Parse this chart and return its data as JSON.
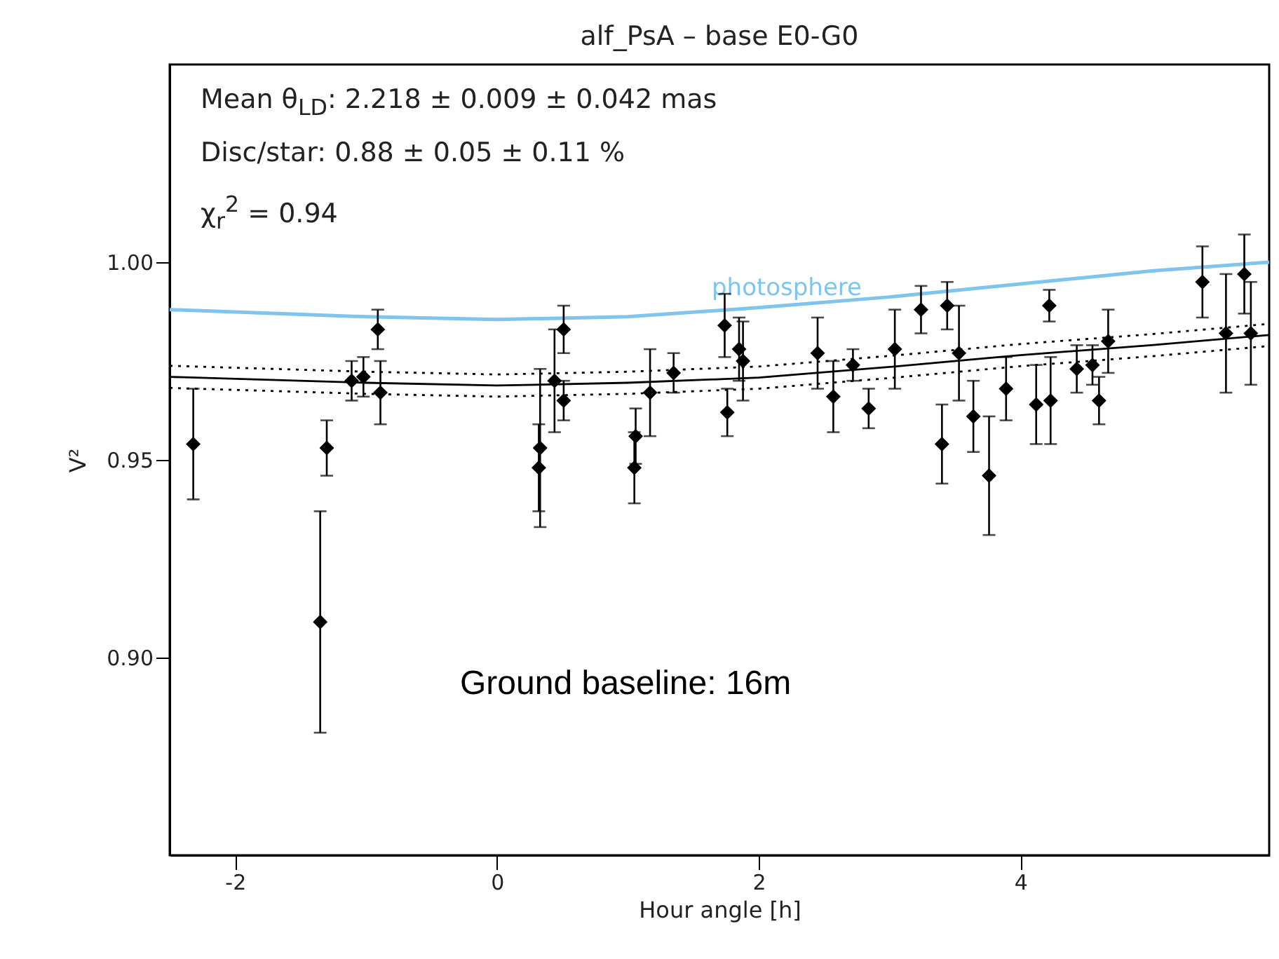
{
  "chart_data": {
    "type": "scatter",
    "title": "alf_PsA – base E0-G0",
    "xlabel": "Hour angle [h]",
    "ylabel": "V²",
    "xlim": [
      -2.5,
      5.9
    ],
    "xticks": [
      -2,
      0,
      2,
      4
    ],
    "ylim": [
      0.85,
      1.05
    ],
    "yticks": [
      {
        "value": 0.9,
        "label": "0.90"
      },
      0.95,
      {
        "value": 1.0,
        "label": "1.00"
      }
    ],
    "annotations": [
      "Mean θ$_{LD}$: 2.218 ± 0.009 ± 0.042 mas",
      "Disc/star:  0.88 ± 0.05 ± 0.11 %",
      "χ$_{r}$$^{2}$ =  0.94",
      "Ground baseline: 16m"
    ],
    "series": [
      {
        "marker": "diamond",
        "color": "#000000",
        "x": [
          -2.32,
          -1.35,
          -1.3,
          -1.11,
          -1.02,
          -0.91,
          -0.89,
          0.44,
          0.51,
          0.51,
          0.32,
          0.33,
          1.05,
          1.06,
          1.17,
          1.35,
          1.74,
          1.85,
          1.88,
          1.76,
          2.45,
          2.57,
          2.72,
          2.84,
          3.04,
          3.24,
          3.44,
          3.53,
          3.4,
          3.64,
          3.76,
          3.89,
          4.12,
          4.23,
          4.22,
          4.43,
          4.55,
          4.6,
          4.67,
          5.39,
          5.57,
          5.71,
          5.76
        ],
        "values": [
          0.954,
          0.909,
          0.953,
          0.97,
          0.971,
          0.983,
          0.967,
          0.97,
          0.983,
          0.965,
          0.948,
          0.953,
          0.948,
          0.956,
          0.967,
          0.972,
          0.984,
          0.978,
          0.975,
          0.962,
          0.977,
          0.966,
          0.974,
          0.963,
          0.978,
          0.988,
          0.989,
          0.977,
          0.954,
          0.961,
          0.946,
          0.968,
          0.964,
          0.965,
          0.989,
          0.973,
          0.974,
          0.965,
          0.98,
          0.995,
          0.982,
          0.997,
          0.982
        ],
        "errors": [
          0.014,
          0.028,
          0.007,
          0.005,
          0.005,
          0.005,
          0.008,
          0.013,
          0.006,
          0.005,
          0.011,
          0.02,
          0.009,
          0.007,
          0.011,
          0.005,
          0.008,
          0.008,
          0.01,
          0.006,
          0.009,
          0.009,
          0.004,
          0.005,
          0.01,
          0.006,
          0.006,
          0.012,
          0.01,
          0.009,
          0.015,
          0.008,
          0.01,
          0.011,
          0.004,
          0.006,
          0.005,
          0.006,
          0.008,
          0.009,
          0.015,
          0.01,
          0.013
        ]
      },
      {
        "type": "line",
        "color": "#000000",
        "x": [
          -2.5,
          -1,
          0,
          1,
          2,
          3,
          4,
          5,
          5.9
        ],
        "values": [
          0.971,
          0.9695,
          0.9688,
          0.9695,
          0.9708,
          0.9735,
          0.9765,
          0.979,
          0.9816
        ]
      },
      {
        "type": "line",
        "color": "#000000",
        "line_style": "dotted",
        "x": [
          -2.5,
          -1,
          0,
          1,
          2,
          3,
          4,
          5,
          5.9
        ],
        "values": [
          0.9738,
          0.9723,
          0.9716,
          0.9723,
          0.9736,
          0.9763,
          0.9793,
          0.9818,
          0.9844
        ]
      },
      {
        "type": "line",
        "color": "#000000",
        "line_style": "dotted",
        "x": [
          -2.5,
          -1,
          0,
          1,
          2,
          3,
          4,
          5,
          5.9
        ],
        "values": [
          0.9682,
          0.9667,
          0.966,
          0.9667,
          0.968,
          0.9707,
          0.9737,
          0.9762,
          0.9788
        ]
      },
      {
        "type": "line",
        "name": "photosphere",
        "color": "#7ec4ec",
        "x": [
          -2.5,
          -1,
          0,
          1,
          2,
          3,
          4,
          5,
          5.9
        ],
        "values": [
          0.988,
          0.9862,
          0.9855,
          0.9862,
          0.9885,
          0.9912,
          0.9945,
          0.9978,
          1.0
        ]
      }
    ]
  }
}
